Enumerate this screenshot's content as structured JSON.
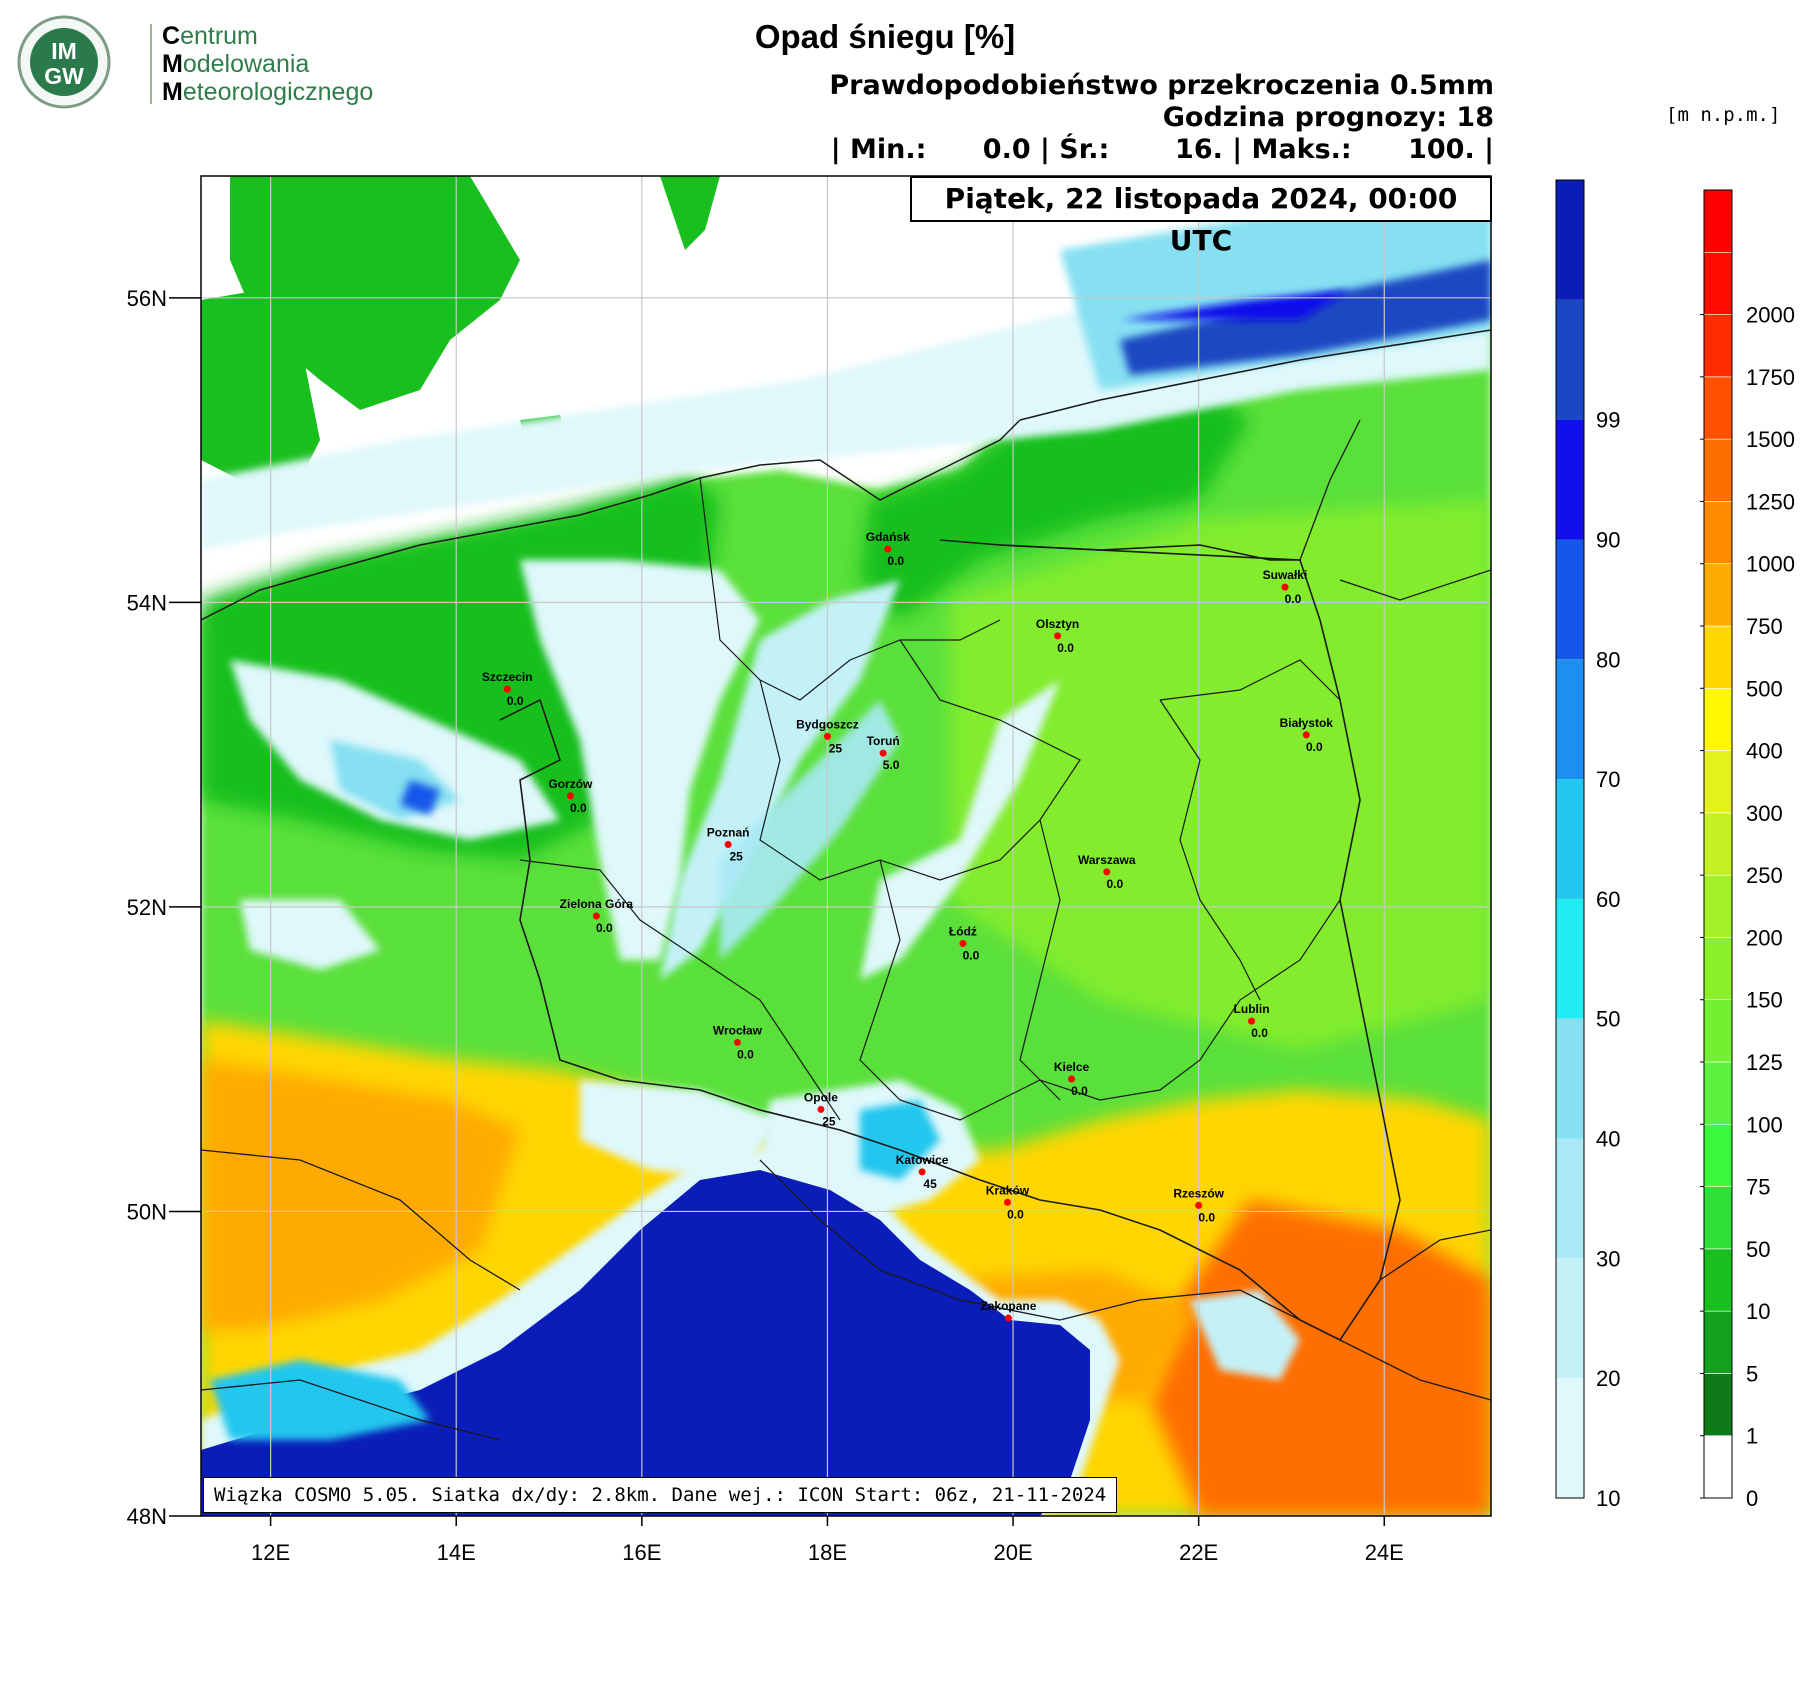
{
  "logo": {
    "badge_top": "IM",
    "badge_bottom": "GW",
    "line1_initial": "C",
    "line1_rest": "entrum",
    "line2_initial": "M",
    "line2_rest": "odelowania",
    "line3_initial": "M",
    "line3_rest": "eteorologicznego"
  },
  "title": "Opad śniegu [%]",
  "header": {
    "line1": "Prawdopodobieństwo przekroczenia 0.5mm",
    "line2": "Godzina prognozy: 18",
    "line3": "| Min.:      0.0 | Śr.:       16. | Maks.:      100. |"
  },
  "date": "Piątek, 22 listopada 2024, 00:00 UTC",
  "unit": "[m n.p.m.]",
  "footer": "Wiązka COSMO 5.05. Siatka dx/dy: 2.8km. Dane wej.: ICON Start: 06z, 21-11-2024",
  "lat_labels": [
    "56N",
    "54N",
    "52N",
    "50N",
    "48N"
  ],
  "lon_labels": [
    "12E",
    "14E",
    "16E",
    "18E",
    "20E",
    "22E",
    "24E"
  ],
  "cities": [
    {
      "name": "Gdańsk",
      "value": "0.0",
      "lon": 18.65,
      "lat": 54.35
    },
    {
      "name": "Suwałki",
      "value": "0.0",
      "lon": 22.93,
      "lat": 54.1
    },
    {
      "name": "Olsztyn",
      "value": "0.0",
      "lon": 20.48,
      "lat": 53.78
    },
    {
      "name": "Szczecin",
      "value": "0.0",
      "lon": 14.55,
      "lat": 53.43
    },
    {
      "name": "Bydgoszcz",
      "value": "25",
      "lon": 18.0,
      "lat": 53.12
    },
    {
      "name": "Toruń",
      "value": "5.0",
      "lon": 18.6,
      "lat": 53.01
    },
    {
      "name": "Białystok",
      "value": "0.0",
      "lon": 23.16,
      "lat": 53.13
    },
    {
      "name": "Gorzów",
      "value": "0.0",
      "lon": 15.23,
      "lat": 52.73
    },
    {
      "name": "Poznań",
      "value": "25",
      "lon": 16.93,
      "lat": 52.41
    },
    {
      "name": "Warszawa",
      "value": "0.0",
      "lon": 21.01,
      "lat": 52.23
    },
    {
      "name": "Zielona Góra",
      "value": "0.0",
      "lon": 15.51,
      "lat": 51.94
    },
    {
      "name": "Łódź",
      "value": "0.0",
      "lon": 19.46,
      "lat": 51.76
    },
    {
      "name": "Wrocław",
      "value": "0.0",
      "lon": 17.03,
      "lat": 51.11
    },
    {
      "name": "Lublin",
      "value": "0.0",
      "lon": 22.57,
      "lat": 51.25
    },
    {
      "name": "Kielce",
      "value": "0.0",
      "lon": 20.63,
      "lat": 50.87
    },
    {
      "name": "Opole",
      "value": "25",
      "lon": 17.93,
      "lat": 50.67
    },
    {
      "name": "Katowice",
      "value": "45",
      "lon": 19.02,
      "lat": 50.26
    },
    {
      "name": "Kraków",
      "value": "0.0",
      "lon": 19.94,
      "lat": 50.06
    },
    {
      "name": "Rzeszów",
      "value": "0.0",
      "lon": 22.0,
      "lat": 50.04
    },
    {
      "name": "Zakopane",
      "value": "",
      "lon": 19.95,
      "lat": 49.3
    }
  ],
  "snow_scale": {
    "labels": [
      "10",
      "20",
      "30",
      "40",
      "50",
      "60",
      "70",
      "80",
      "90",
      "99"
    ],
    "colors": [
      "#dff8fb",
      "#c4f1f8",
      "#a8e9f5",
      "#86e0f2",
      "#22ecf3",
      "#23c6ee",
      "#1e8ef0",
      "#1557e8",
      "#1110ea",
      "#1a48c2",
      "#0a1db8"
    ]
  },
  "height_scale": {
    "labels": [
      "0",
      "1",
      "5",
      "10",
      "50",
      "75",
      "100",
      "125",
      "150",
      "200",
      "250",
      "300",
      "400",
      "500",
      "750",
      "1000",
      "1250",
      "1500",
      "1750",
      "2000"
    ],
    "colors": [
      "#ffffff",
      "#0f7a18",
      "#14a21e",
      "#19bf1e",
      "#2ee038",
      "#3af83a",
      "#5af23c",
      "#73f032",
      "#8cf02a",
      "#a4f026",
      "#c6f024",
      "#e4f21c",
      "#fff800",
      "#ffd600",
      "#ffaa00",
      "#ff8c00",
      "#ff6e00",
      "#ff5000",
      "#ff2c00",
      "#ff0e00",
      "#ff0000"
    ]
  }
}
